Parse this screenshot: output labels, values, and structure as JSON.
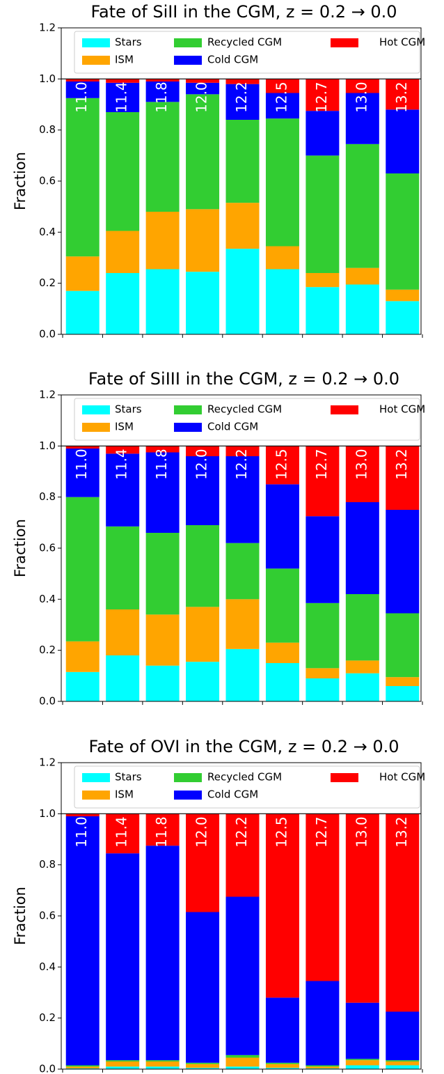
{
  "chart_data": [
    {
      "type": "bar",
      "stacked": true,
      "title": "Fate of SiII in the CGM, z = 0.2 → 0.0",
      "y_label": "Fraction",
      "categories": [
        "11.0",
        "11.4",
        "11.8",
        "12.0",
        "12.2",
        "12.5",
        "12.7",
        "13.0",
        "13.2"
      ],
      "series": [
        {
          "name": "Stars",
          "color": "#00ffff",
          "values": [
            0.17,
            0.24,
            0.255,
            0.245,
            0.335,
            0.255,
            0.185,
            0.195,
            0.13
          ]
        },
        {
          "name": "ISM",
          "color": "#ffa500",
          "values": [
            0.135,
            0.165,
            0.225,
            0.245,
            0.18,
            0.09,
            0.055,
            0.065,
            0.045
          ]
        },
        {
          "name": "Recycled CGM",
          "color": "#32cd32",
          "values": [
            0.62,
            0.465,
            0.43,
            0.45,
            0.325,
            0.5,
            0.46,
            0.485,
            0.455
          ]
        },
        {
          "name": "Cold CGM",
          "color": "#0000ff",
          "values": [
            0.065,
            0.115,
            0.08,
            0.045,
            0.14,
            0.1,
            0.175,
            0.2,
            0.25
          ]
        },
        {
          "name": "Hot CGM",
          "color": "#ff0000",
          "values": [
            0.01,
            0.015,
            0.01,
            0.015,
            0.02,
            0.055,
            0.125,
            0.055,
            0.12
          ]
        }
      ],
      "ylim": [
        0,
        1.2
      ],
      "yticks": [
        {
          "value": 0,
          "label": "0.0"
        },
        {
          "value": 0.2,
          "label": "0.2"
        },
        {
          "value": 0.4,
          "label": "0.4"
        },
        {
          "value": 0.6,
          "label": "0.6"
        },
        {
          "value": 0.8,
          "label": "0.8"
        },
        {
          "value": 1,
          "label": "1.0"
        },
        {
          "value": 1.2,
          "label": "1.2"
        }
      ],
      "legend": "upper center"
    },
    {
      "type": "bar",
      "stacked": true,
      "title": "Fate of SiIII in the CGM, z = 0.2 → 0.0",
      "y_label": "Fraction",
      "categories": [
        "11.0",
        "11.4",
        "11.8",
        "12.0",
        "12.2",
        "12.5",
        "12.7",
        "13.0",
        "13.2"
      ],
      "series": [
        {
          "name": "Stars",
          "color": "#00ffff",
          "values": [
            0.115,
            0.18,
            0.14,
            0.155,
            0.205,
            0.15,
            0.09,
            0.11,
            0.06
          ]
        },
        {
          "name": "ISM",
          "color": "#ffa500",
          "values": [
            0.12,
            0.18,
            0.2,
            0.215,
            0.195,
            0.08,
            0.04,
            0.05,
            0.035
          ]
        },
        {
          "name": "Recycled CGM",
          "color": "#32cd32",
          "values": [
            0.565,
            0.325,
            0.32,
            0.32,
            0.22,
            0.29,
            0.255,
            0.26,
            0.25
          ]
        },
        {
          "name": "Cold CGM",
          "color": "#0000ff",
          "values": [
            0.19,
            0.285,
            0.315,
            0.27,
            0.34,
            0.33,
            0.34,
            0.36,
            0.405
          ]
        },
        {
          "name": "Hot CGM",
          "color": "#ff0000",
          "values": [
            0.01,
            0.03,
            0.025,
            0.04,
            0.04,
            0.15,
            0.275,
            0.22,
            0.25
          ]
        }
      ],
      "ylim": [
        0,
        1.2
      ],
      "yticks": [
        {
          "value": 0,
          "label": "0.0"
        },
        {
          "value": 0.2,
          "label": "0.2"
        },
        {
          "value": 0.4,
          "label": "0.4"
        },
        {
          "value": 0.6,
          "label": "0.6"
        },
        {
          "value": 0.8,
          "label": "0.8"
        },
        {
          "value": 1,
          "label": "1.0"
        },
        {
          "value": 1.2,
          "label": "1.2"
        }
      ],
      "legend": "upper center"
    },
    {
      "type": "bar",
      "stacked": true,
      "title": "Fate of OVI in the CGM, z = 0.2 → 0.0",
      "y_label": "Fraction",
      "categories": [
        "11.0",
        "11.4",
        "11.8",
        "12.0",
        "12.2",
        "12.5",
        "12.7",
        "13.0",
        "13.2"
      ],
      "series": [
        {
          "name": "Stars",
          "color": "#00ffff",
          "values": [
            0.003,
            0.01,
            0.01,
            0.005,
            0.01,
            0.005,
            0.003,
            0.015,
            0.015
          ]
        },
        {
          "name": "ISM",
          "color": "#ffa500",
          "values": [
            0.007,
            0.02,
            0.02,
            0.015,
            0.035,
            0.015,
            0.007,
            0.02,
            0.015
          ]
        },
        {
          "name": "Recycled CGM",
          "color": "#32cd32",
          "values": [
            0.005,
            0.005,
            0.005,
            0.005,
            0.01,
            0.005,
            0.005,
            0.005,
            0.005
          ]
        },
        {
          "name": "Cold CGM",
          "color": "#0000ff",
          "values": [
            0.975,
            0.81,
            0.84,
            0.59,
            0.62,
            0.255,
            0.33,
            0.22,
            0.19
          ]
        },
        {
          "name": "Hot CGM",
          "color": "#ff0000",
          "values": [
            0.01,
            0.155,
            0.125,
            0.385,
            0.325,
            0.72,
            0.655,
            0.74,
            0.775
          ]
        }
      ],
      "ylim": [
        0,
        1.2
      ],
      "yticks": [
        {
          "value": 0,
          "label": "0.0"
        },
        {
          "value": 0.2,
          "label": "0.2"
        },
        {
          "value": 0.4,
          "label": "0.4"
        },
        {
          "value": 0.6,
          "label": "0.6"
        },
        {
          "value": 0.8,
          "label": "0.8"
        },
        {
          "value": 1,
          "label": "1.0"
        },
        {
          "value": 1.2,
          "label": "1.2"
        }
      ],
      "legend": "upper center"
    }
  ]
}
